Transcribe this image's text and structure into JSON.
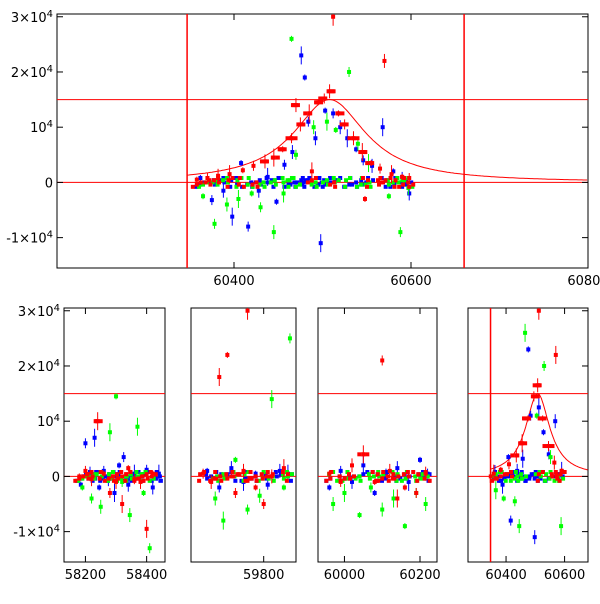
{
  "chart_data": [
    {
      "type": "scatter",
      "title": "",
      "xlabel": "",
      "ylabel": "",
      "xlim": [
        60200,
        60800
      ],
      "ylim": [
        -15500,
        30500
      ],
      "x_ticks": [
        {
          "value": 60400,
          "label": "60400"
        },
        {
          "value": 60600,
          "label": "60600"
        },
        {
          "value": 60800,
          "label": "60800"
        }
      ],
      "y_ticks": [
        {
          "value": -10000,
          "label": "-1×10⁴"
        },
        {
          "value": 0,
          "label": "0"
        },
        {
          "value": 10000,
          "label": "10⁴"
        },
        {
          "value": 20000,
          "label": "2×10⁴"
        },
        {
          "value": 30000,
          "label": "3×10⁴"
        }
      ],
      "reference_lines": {
        "horizontal": [
          0,
          15000
        ],
        "vertical": [
          60347,
          60660
        ]
      },
      "model_curve": {
        "peak_x": 60508,
        "peak_y": 15000,
        "width": 50,
        "color": "#ff0000"
      },
      "series": [
        {
          "color": "#0000ff",
          "points": [
            [
              60362,
              800
            ],
            [
              60375,
              -3200
            ],
            [
              60388,
              -1500
            ],
            [
              60398,
              -6200
            ],
            [
              60408,
              3500
            ],
            [
              60416,
              -8000
            ],
            [
              60428,
              -1500
            ],
            [
              60438,
              1000
            ],
            [
              60448,
              -3500
            ],
            [
              60457,
              3200
            ],
            [
              60466,
              5500
            ],
            [
              60476,
              23000
            ],
            [
              60480,
              19000
            ],
            [
              60484,
              11000
            ],
            [
              60492,
              8000
            ],
            [
              60498,
              -11000
            ],
            [
              60503,
              13000
            ],
            [
              60512,
              12500
            ],
            [
              60520,
              10000
            ],
            [
              60528,
              8000
            ],
            [
              60538,
              6000
            ],
            [
              60546,
              4000
            ],
            [
              60556,
              3000
            ],
            [
              60568,
              10000
            ],
            [
              60580,
              2000
            ],
            [
              60590,
              1000
            ],
            [
              60598,
              -2000
            ]
          ]
        },
        {
          "color": "#00ff00",
          "points": [
            [
              60365,
              -2500
            ],
            [
              60378,
              -7500
            ],
            [
              60392,
              -4000
            ],
            [
              60405,
              -3000
            ],
            [
              60420,
              -2000
            ],
            [
              60430,
              -4500
            ],
            [
              60445,
              -9000
            ],
            [
              60456,
              -2000
            ],
            [
              60465,
              26000
            ],
            [
              60470,
              5000
            ],
            [
              60490,
              10000
            ],
            [
              60505,
              11000
            ],
            [
              60515,
              9500
            ],
            [
              60530,
              20000
            ],
            [
              60540,
              7000
            ],
            [
              60552,
              3500
            ],
            [
              60575,
              -2500
            ],
            [
              60588,
              -9000
            ],
            [
              60597,
              -1000
            ]
          ]
        },
        {
          "color": "#ff0000",
          "points": [
            [
              60358,
              500
            ],
            [
              60370,
              800
            ],
            [
              60382,
              1200
            ],
            [
              60395,
              1500
            ],
            [
              60410,
              2200
            ],
            [
              60422,
              3000
            ],
            [
              60435,
              3800
            ],
            [
              60445,
              4500
            ],
            [
              60455,
              6000
            ],
            [
              60465,
              8000
            ],
            [
              60475,
              10500
            ],
            [
              60485,
              12500
            ],
            [
              60495,
              14500
            ],
            [
              60502,
              15200
            ],
            [
              60508,
              16500
            ],
            [
              60512,
              30000
            ],
            [
              60518,
              12500
            ],
            [
              60525,
              10500
            ],
            [
              60535,
              8000
            ],
            [
              60545,
              5500
            ],
            [
              60555,
              3500
            ],
            [
              60565,
              2500
            ],
            [
              60570,
              22000
            ],
            [
              60578,
              1500
            ],
            [
              60590,
              1000
            ],
            [
              60598,
              800
            ],
            [
              60470,
              14000
            ],
            [
              60488,
              2000
            ],
            [
              60548,
              -3000
            ]
          ]
        }
      ]
    },
    {
      "type": "scatter",
      "title": "",
      "xlabel": "",
      "ylabel": "",
      "xlim": [
        58130,
        60680
      ],
      "ylim": [
        -15500,
        30500
      ],
      "x_breaks": [
        [
          58130,
          58460
        ],
        [
          59620,
          59880
        ],
        [
          59930,
          60245
        ],
        [
          60270,
          60680
        ]
      ],
      "x_ticks": [
        {
          "value": 58200,
          "label": "58200"
        },
        {
          "value": 58400,
          "label": "58400"
        },
        {
          "value": 59800,
          "label": "59800"
        },
        {
          "value": 60000,
          "label": "60000"
        },
        {
          "value": 60200,
          "label": "60200"
        },
        {
          "value": 60400,
          "label": "60400"
        },
        {
          "value": 60600,
          "label": "60600"
        }
      ],
      "y_ticks": [
        {
          "value": -10000,
          "label": "-1×10⁴"
        },
        {
          "value": 0,
          "label": "0"
        },
        {
          "value": 10000,
          "label": "10⁴"
        },
        {
          "value": 20000,
          "label": "2×10⁴"
        },
        {
          "value": 30000,
          "label": "3×10⁴"
        }
      ],
      "reference_lines": {
        "horizontal": [
          0,
          15000
        ],
        "vertical": [
          60347
        ]
      },
      "model_curve": {
        "peak_x": 60508,
        "peak_y": 15000,
        "width": 50,
        "color": "#ff0000"
      },
      "series": [
        {
          "color": "#0000ff",
          "points": [
            [
              58185,
              -1500
            ],
            [
              58200,
              6000
            ],
            [
              58215,
              500
            ],
            [
              58230,
              7000
            ],
            [
              58245,
              -2000
            ],
            [
              58260,
              1000
            ],
            [
              58275,
              -500
            ],
            [
              58295,
              -3000
            ],
            [
              58310,
              2000
            ],
            [
              58325,
              3500
            ],
            [
              58340,
              -1500
            ],
            [
              58360,
              500
            ],
            [
              58380,
              -800
            ],
            [
              58400,
              1200
            ],
            [
              58420,
              -2000
            ],
            [
              58440,
              500
            ],
            [
              59660,
              1000
            ],
            [
              59690,
              -2000
            ],
            [
              59720,
              1500
            ],
            [
              59750,
              -1000
            ],
            [
              59780,
              500
            ],
            [
              59810,
              -1500
            ],
            [
              59840,
              1000
            ],
            [
              59860,
              500
            ],
            [
              59960,
              -2000
            ],
            [
              59990,
              1000
            ],
            [
              60020,
              -1000
            ],
            [
              60050,
              2000
            ],
            [
              60080,
              -3000
            ],
            [
              60110,
              500
            ],
            [
              60140,
              1500
            ],
            [
              60170,
              -1000
            ],
            [
              60200,
              3000
            ],
            [
              60220,
              500
            ],
            [
              60362,
              800
            ],
            [
              60388,
              -1500
            ],
            [
              60408,
              3500
            ],
            [
              60416,
              -8000
            ],
            [
              60438,
              1000
            ],
            [
              60457,
              3200
            ],
            [
              60476,
              23000
            ],
            [
              60484,
              11000
            ],
            [
              60498,
              -11000
            ],
            [
              60512,
              12500
            ],
            [
              60528,
              8000
            ],
            [
              60546,
              4000
            ],
            [
              60568,
              10000
            ],
            [
              60590,
              1000
            ]
          ]
        },
        {
          "color": "#00ff00",
          "points": [
            [
              58190,
              -2000
            ],
            [
              58220,
              -4000
            ],
            [
              58250,
              -5500
            ],
            [
              58280,
              8000
            ],
            [
              58300,
              14500
            ],
            [
              58320,
              -1000
            ],
            [
              58345,
              -7000
            ],
            [
              58370,
              9000
            ],
            [
              58390,
              -3000
            ],
            [
              58410,
              -13000
            ],
            [
              59680,
              -4000
            ],
            [
              59700,
              -8000
            ],
            [
              59730,
              3000
            ],
            [
              59760,
              -6000
            ],
            [
              59790,
              -3500
            ],
            [
              59820,
              14000
            ],
            [
              59850,
              -2000
            ],
            [
              59865,
              25000
            ],
            [
              59970,
              -5000
            ],
            [
              60000,
              -3000
            ],
            [
              60040,
              -7000
            ],
            [
              60070,
              -2000
            ],
            [
              60100,
              -6000
            ],
            [
              60130,
              -4000
            ],
            [
              60160,
              -9000
            ],
            [
              60190,
              -3000
            ],
            [
              60215,
              -5000
            ],
            [
              60365,
              -2500
            ],
            [
              60392,
              -4000
            ],
            [
              60430,
              -4500
            ],
            [
              60445,
              -9000
            ],
            [
              60465,
              26000
            ],
            [
              60505,
              11000
            ],
            [
              60530,
              20000
            ],
            [
              60552,
              3500
            ],
            [
              60588,
              -9000
            ]
          ]
        },
        {
          "color": "#ff0000",
          "points": [
            [
              58180,
              0
            ],
            [
              58200,
              1000
            ],
            [
              58220,
              -500
            ],
            [
              58240,
              10000
            ],
            [
              58260,
              500
            ],
            [
              58280,
              -3000
            ],
            [
              58300,
              -1000
            ],
            [
              58320,
              -5000
            ],
            [
              58340,
              1500
            ],
            [
              58360,
              -500
            ],
            [
              58380,
              -1000
            ],
            [
              58400,
              -9500
            ],
            [
              58420,
              500
            ],
            [
              59650,
              500
            ],
            [
              59670,
              -1000
            ],
            [
              59690,
              18000
            ],
            [
              59710,
              22000
            ],
            [
              59730,
              -3000
            ],
            [
              59750,
              1000
            ],
            [
              59760,
              30000
            ],
            [
              59780,
              -2000
            ],
            [
              59800,
              -5000
            ],
            [
              59820,
              0
            ],
            [
              59850,
              1500
            ],
            [
              59960,
              500
            ],
            [
              59990,
              -1000
            ],
            [
              60020,
              2000
            ],
            [
              60050,
              4000
            ],
            [
              60080,
              -1000
            ],
            [
              60100,
              21000
            ],
            [
              60120,
              1000
            ],
            [
              60140,
              -4000
            ],
            [
              60160,
              -2000
            ],
            [
              60190,
              -3000
            ],
            [
              60215,
              500
            ],
            [
              60358,
              500
            ],
            [
              60382,
              1200
            ],
            [
              60410,
              2200
            ],
            [
              60435,
              3800
            ],
            [
              60455,
              6000
            ],
            [
              60475,
              10500
            ],
            [
              60495,
              14500
            ],
            [
              60508,
              16500
            ],
            [
              60512,
              30000
            ],
            [
              60525,
              10500
            ],
            [
              60545,
              5500
            ],
            [
              60565,
              2500
            ],
            [
              60570,
              22000
            ],
            [
              60590,
              1000
            ]
          ]
        }
      ]
    }
  ]
}
